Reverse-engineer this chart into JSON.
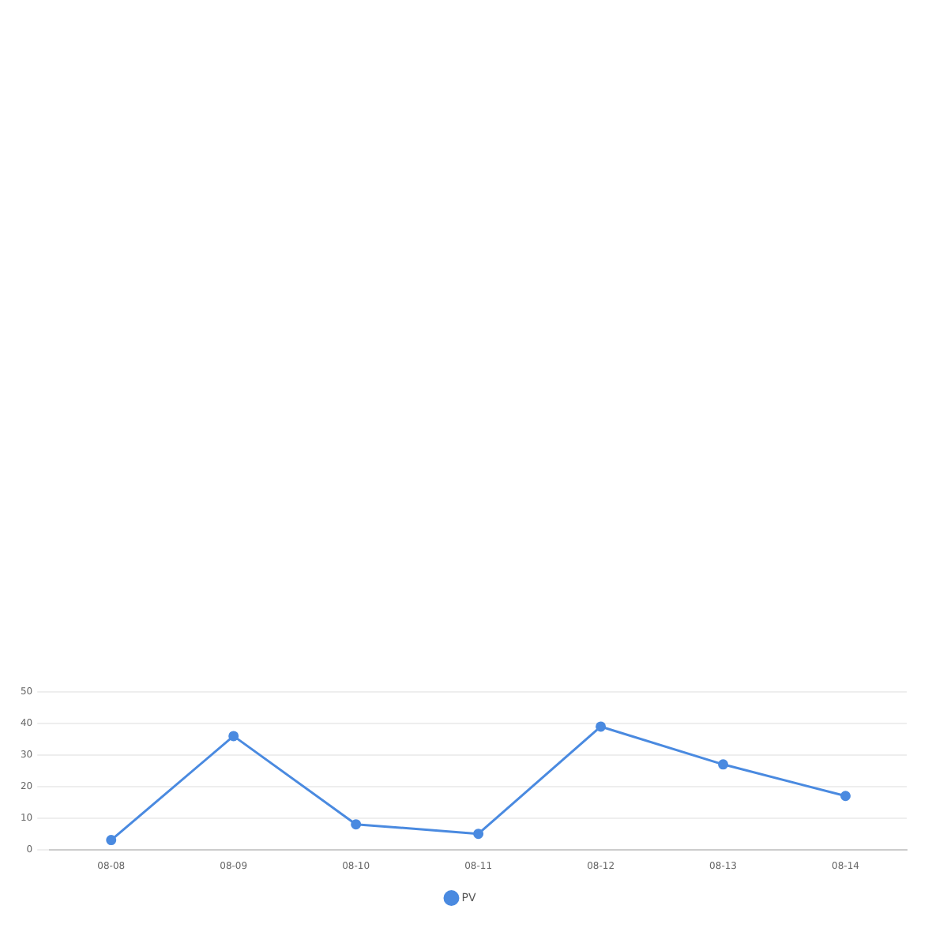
{
  "chart_data": {
    "type": "line",
    "categories": [
      "08-08",
      "08-09",
      "08-10",
      "08-11",
      "08-12",
      "08-13",
      "08-14"
    ],
    "series": [
      {
        "name": "PV",
        "color": "#4a8ae0",
        "values": [
          3,
          36,
          8,
          5,
          39,
          27,
          17
        ]
      }
    ],
    "ylim": [
      0,
      50
    ],
    "yticks": [
      0,
      10,
      20,
      30,
      40,
      50
    ],
    "grid": "y",
    "legend": "bottom",
    "marker": "circle",
    "line_style": "solid"
  }
}
